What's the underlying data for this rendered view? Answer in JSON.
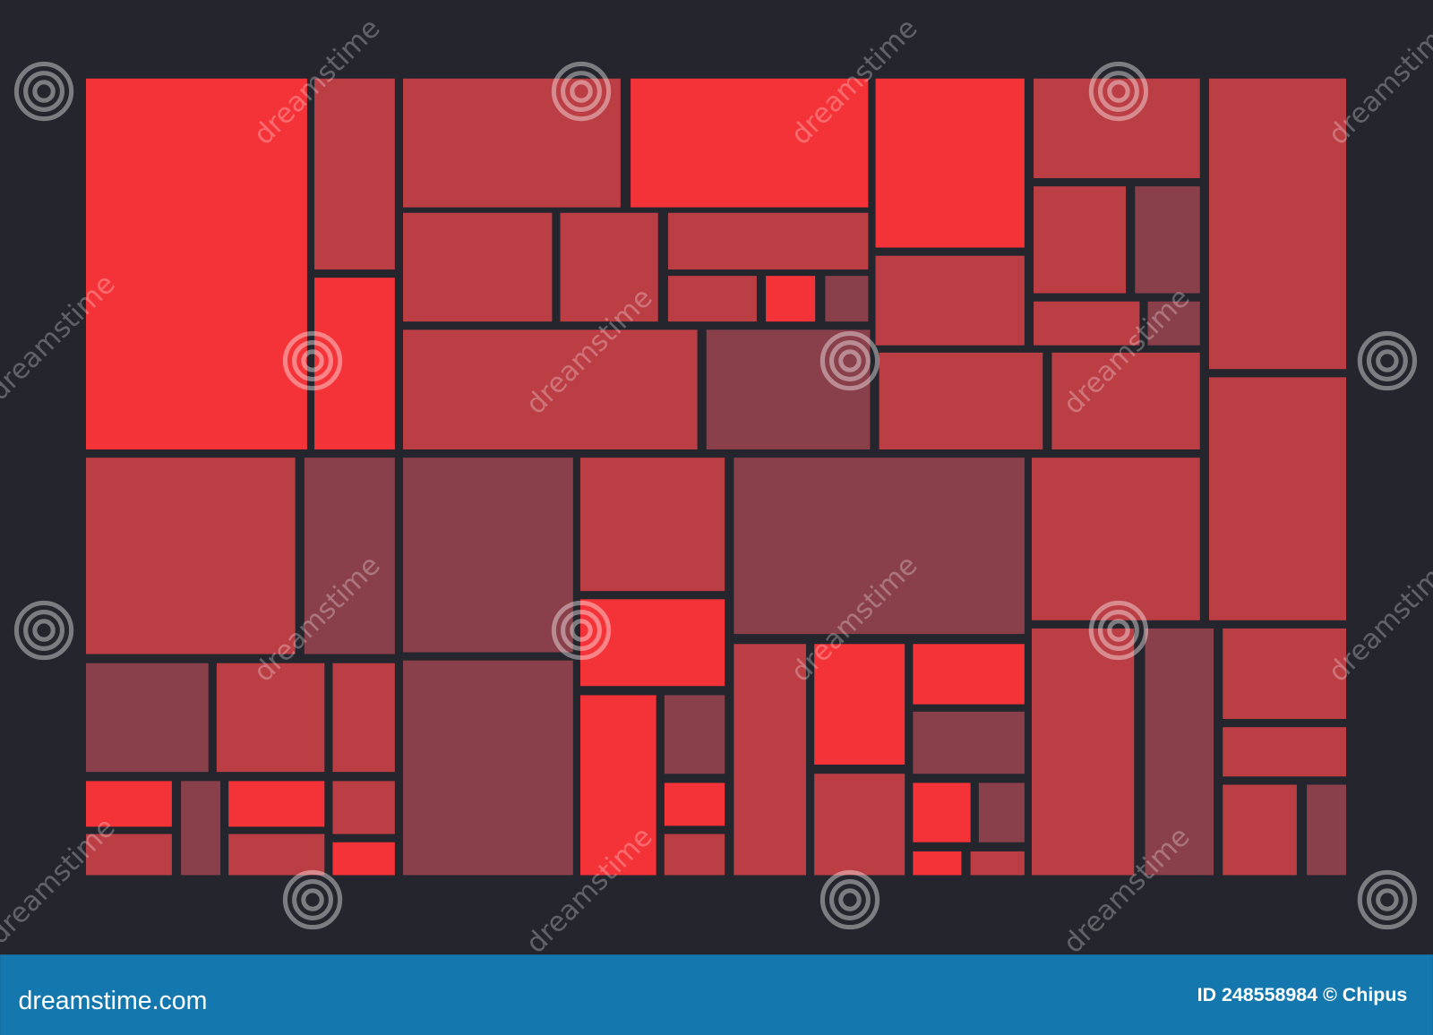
{
  "watermark": "dreamstime",
  "footer": {
    "site": "dreamstime.com",
    "credit": "ID 248558984 © Chipus"
  }
}
